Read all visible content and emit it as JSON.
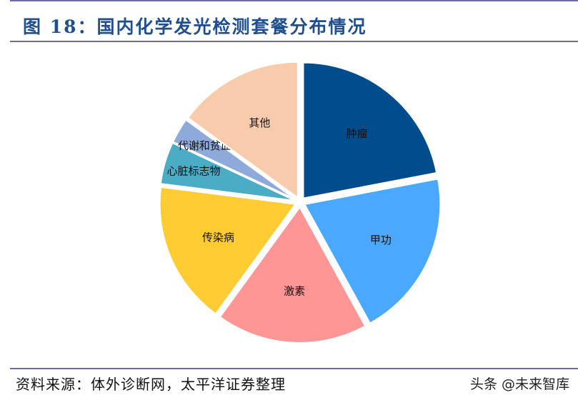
{
  "header": {
    "title": "图 18：国内化学发光检测套餐分布情况"
  },
  "footer": {
    "source": "资料来源：体外诊断网，太平洋证券整理",
    "watermark": "头条 @未来智库"
  },
  "colors": {
    "title": "#1f4f91",
    "rule": "#6d6aa5"
  },
  "chart_data": {
    "type": "pie",
    "title": "国内化学发光检测套餐分布情况",
    "start_angle": "12 o'clock, clockwise",
    "exploded": true,
    "legend": "none (labels inside slices)",
    "categories": [
      "肿瘤",
      "甲功",
      "激素",
      "传染病",
      "心脏标志物",
      "代谢和贫血",
      "其他"
    ],
    "values": [
      22,
      20,
      18,
      17,
      5,
      3,
      15
    ],
    "unit": "% (estimated from slice angles)",
    "slice_colors": [
      "#004c8c",
      "#4aa8ff",
      "#ff9696",
      "#ffcc33",
      "#4bacc6",
      "#8eaadb",
      "#f8cbad"
    ]
  }
}
